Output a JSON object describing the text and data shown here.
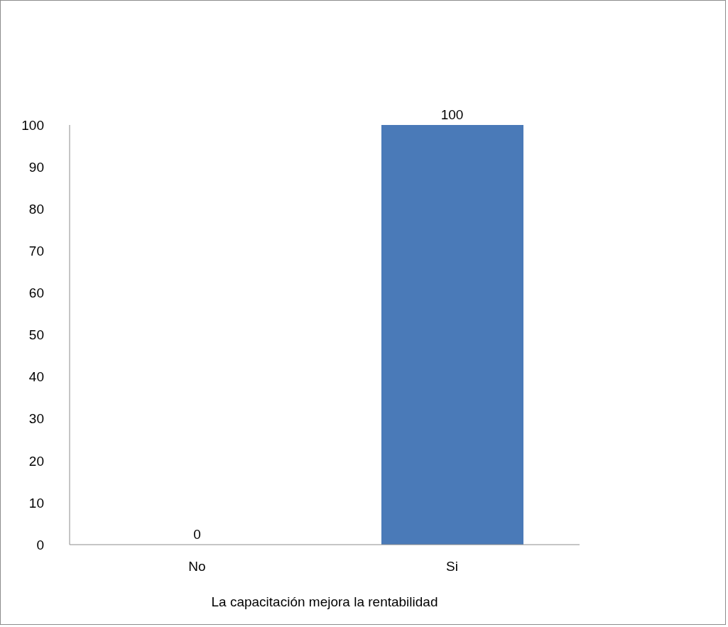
{
  "chart_data": {
    "type": "bar",
    "xlabel": "La capacitación mejora la rentabilidad",
    "categories": [
      "No",
      "Si"
    ],
    "values": [
      0,
      100
    ],
    "color": "#4a7ab8",
    "ylim": [
      0,
      100
    ],
    "yticks": [
      0,
      10,
      20,
      30,
      40,
      50,
      60,
      70,
      80,
      90,
      100
    ],
    "data_labels": true
  }
}
